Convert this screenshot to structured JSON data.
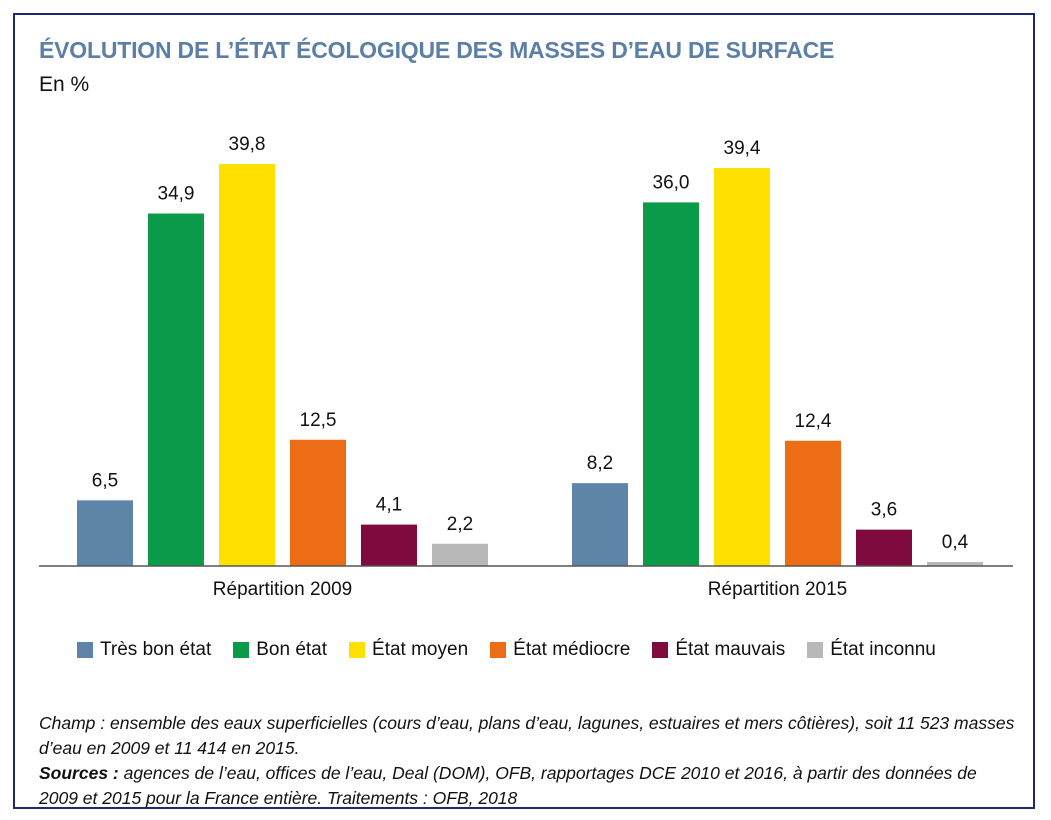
{
  "title": "ÉVOLUTION DE L’ÉTAT ÉCOLOGIQUE DES MASSES D’EAU DE SURFACE",
  "subtitle": "En %",
  "chart_data": {
    "type": "bar",
    "categories": [
      "Répartition 2009",
      "Répartition 2015"
    ],
    "series": [
      {
        "name": "Très bon état",
        "color": "#5e84a8",
        "values": [
          6.5,
          8.2
        ],
        "labels": [
          "6,5",
          "8,2"
        ]
      },
      {
        "name": "Bon état",
        "color": "#0a9a48",
        "values": [
          34.9,
          36.0
        ],
        "labels": [
          "34,9",
          "36,0"
        ]
      },
      {
        "name": "État moyen",
        "color": "#ffe000",
        "values": [
          39.8,
          39.4
        ],
        "labels": [
          "39,8",
          "39,4"
        ]
      },
      {
        "name": "État médiocre",
        "color": "#ec6d16",
        "values": [
          12.5,
          12.4
        ],
        "labels": [
          "12,5",
          "12,4"
        ]
      },
      {
        "name": "État mauvais",
        "color": "#7e0a3e",
        "values": [
          4.1,
          3.6
        ],
        "labels": [
          "4,1",
          "3,6"
        ]
      },
      {
        "name": "État inconnu",
        "color": "#b8b8b8",
        "values": [
          2.2,
          0.4
        ],
        "labels": [
          "2,2",
          "0,4"
        ]
      }
    ],
    "ylim": [
      0,
      40
    ],
    "grid": false,
    "legend_position": "bottom"
  },
  "notes": {
    "champ": "Champ : ensemble des eaux superficielles (cours d’eau, plans d’eau, lagunes, estuaires et mers côtières), soit 11 523 masses d’eau en 2009 et 11 414 en 2015.",
    "sources_label": "Sources :",
    "sources_text": " agences de l’eau, offices de l’eau, Deal (DOM), OFB, rapportages DCE 2010 et 2016, à partir des données de 2009 et 2015 pour la France entière. Traitements : OFB, 2018"
  }
}
